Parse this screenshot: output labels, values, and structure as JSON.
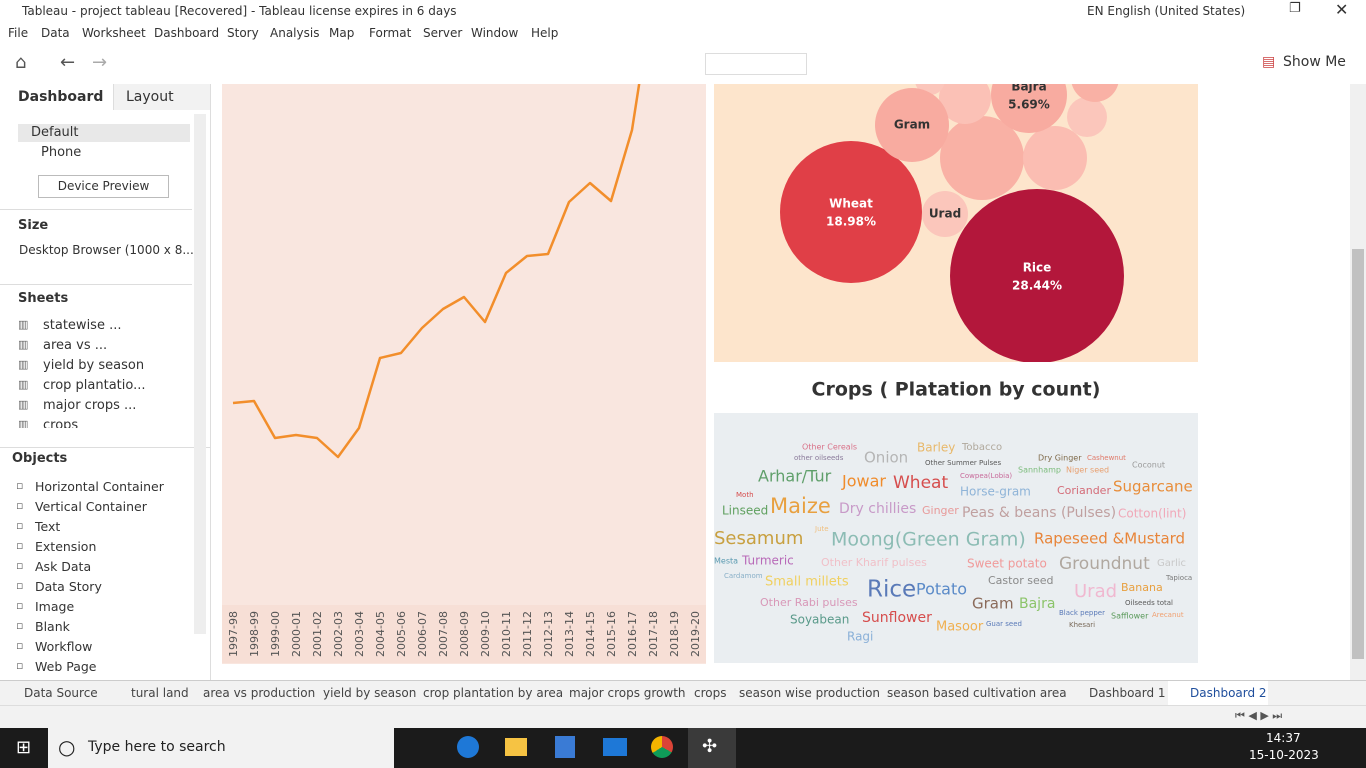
{
  "window": {
    "title": "Tableau - project tableau [Recovered] - Tableau license expires in 6 days",
    "language": "EN English (United States)"
  },
  "menu": [
    "File",
    "Data",
    "Worksheet",
    "Dashboard",
    "Story",
    "Analysis",
    "Map",
    "Format",
    "Server",
    "Window",
    "Help"
  ],
  "toolbar": {
    "show_me": "Show Me"
  },
  "sidebar": {
    "tabs": [
      "Dashboard",
      "Layout"
    ],
    "devices": [
      "Default",
      "Phone"
    ],
    "device_preview": "Device Preview",
    "size_heading": "Size",
    "size_value": "Desktop Browser (1000 x 8...",
    "sheets_heading": "Sheets",
    "sheets": [
      "statewise ...",
      "area vs ...",
      "yield by season",
      "crop plantatio...",
      "major crops ...",
      "crops"
    ],
    "objects_heading": "Objects",
    "objects": [
      "Horizontal Container",
      "Vertical Container",
      "Text",
      "Extension",
      "Ask Data",
      "Data Story",
      "Image",
      "Blank",
      "Workflow",
      "Web Page"
    ]
  },
  "line_chart": {
    "type": "line",
    "color": "#f28e2b",
    "x": [
      "1997-98",
      "1998-99",
      "1999-00",
      "2000-01",
      "2001-02",
      "2002-03",
      "2003-04",
      "2004-05",
      "2005-06",
      "2006-07",
      "2007-08",
      "2008-09",
      "2009-10",
      "2010-11",
      "2011-12",
      "2012-13",
      "2013-14",
      "2014-15",
      "2015-16",
      "2016-17",
      "2017-18",
      "2018-19",
      "2019-20"
    ],
    "values": [
      57,
      59,
      22,
      25,
      22,
      3,
      32,
      102,
      107,
      132,
      151,
      163,
      138,
      187,
      204,
      206,
      258,
      277,
      259,
      330,
      465,
      null,
      null
    ],
    "ylim": [
      0,
      375
    ]
  },
  "bubble_chart": {
    "type": "bubble",
    "bubbles": [
      {
        "name": "Rice",
        "value": 28.44,
        "value_label": "28.44%",
        "color": "#b3173b"
      },
      {
        "name": "Wheat",
        "value": 18.98,
        "value_label": "18.98%",
        "color": "#e03f47"
      },
      {
        "name": "Bajra",
        "value": 5.69,
        "value_label": "5.69%",
        "color": "#f8aba0"
      },
      {
        "name": "Gram",
        "color": "#f8aba0"
      },
      {
        "name": "Urad",
        "color": "#fbc6bb"
      }
    ]
  },
  "word_cloud": {
    "title": "Crops ( Platation by count)",
    "words": [
      {
        "text": "Other Cereals",
        "color": "#d9738a"
      },
      {
        "text": "Barley",
        "color": "#e8b86a"
      },
      {
        "text": "Tobacco",
        "color": "#b0a89c"
      },
      {
        "text": "other oilseeds",
        "color": "#8a7a9a"
      },
      {
        "text": "Onion",
        "color": "#b5b5b5"
      },
      {
        "text": "Dry Ginger",
        "color": "#7f6a4a"
      },
      {
        "text": "Cashewnut",
        "color": "#e07a6a"
      },
      {
        "text": "Other Summer Pulses",
        "color": "#5a5a5a"
      },
      {
        "text": "Coconut",
        "color": "#9a9a9a"
      },
      {
        "text": "Sannhamp",
        "color": "#7cbc7c"
      },
      {
        "text": "Niger seed",
        "color": "#e8a070"
      },
      {
        "text": "Cowpea(Lobia)",
        "color": "#c86a9a"
      },
      {
        "text": "Arhar/Tur",
        "color": "#5f9f6a"
      },
      {
        "text": "Jowar",
        "color": "#f08c2c"
      },
      {
        "text": "Wheat",
        "color": "#d64d4d"
      },
      {
        "text": "Horse-gram",
        "color": "#8fb4d8"
      },
      {
        "text": "Coriander",
        "color": "#d46c78"
      },
      {
        "text": "Sugarcane",
        "color": "#e88d3a"
      },
      {
        "text": "Moth",
        "color": "#d64d4d"
      },
      {
        "text": "Linseed",
        "color": "#5fa05f"
      },
      {
        "text": "Maize",
        "color": "#e8a040"
      },
      {
        "text": "Jute",
        "color": "#f0c080"
      },
      {
        "text": "Dry chillies",
        "color": "#c89ac8"
      },
      {
        "text": "Ginger",
        "color": "#e89a9a"
      },
      {
        "text": "Peas & beans (Pulses)",
        "color": "#c0a0a0"
      },
      {
        "text": "Cotton(lint)",
        "color": "#f0a8b8"
      },
      {
        "text": "Sesamum",
        "color": "#c8a040"
      },
      {
        "text": "Moong(Green Gram)",
        "color": "#8cbcb4"
      },
      {
        "text": "Rapeseed &Mustard",
        "color": "#e8853a"
      },
      {
        "text": "Mesta",
        "color": "#5a9ab0"
      },
      {
        "text": "Turmeric",
        "color": "#b86ab8"
      },
      {
        "text": "Other Kharif pulses",
        "color": "#f0c0c8"
      },
      {
        "text": "Sweet potato",
        "color": "#f09a9a"
      },
      {
        "text": "Groundnut",
        "color": "#b0a8a0"
      },
      {
        "text": "Garlic",
        "color": "#c8c8c8"
      },
      {
        "text": "Cardamom",
        "color": "#8ab0c8"
      },
      {
        "text": "Small millets",
        "color": "#f0d060"
      },
      {
        "text": "Castor seed",
        "color": "#8a8a8a"
      },
      {
        "text": "Tapioca",
        "color": "#7a7a7a"
      },
      {
        "text": "Rice",
        "color": "#5a7ab8"
      },
      {
        "text": "Potato",
        "color": "#5a8ac8"
      },
      {
        "text": "Urad",
        "color": "#f0b8d0"
      },
      {
        "text": "Banana",
        "color": "#e8a040"
      },
      {
        "text": "Other Rabi pulses",
        "color": "#d898b8"
      },
      {
        "text": "Gram",
        "color": "#8a6a5a"
      },
      {
        "text": "Bajra",
        "color": "#8cc46a"
      },
      {
        "text": "Oilseeds total",
        "color": "#5a5a5a"
      },
      {
        "text": "Sunflower",
        "color": "#d64d4d"
      },
      {
        "text": "Black pepper",
        "color": "#5a7ab8"
      },
      {
        "text": "Arecanut",
        "color": "#f0a070"
      },
      {
        "text": "Safflower",
        "color": "#5a9a5a"
      },
      {
        "text": "Soyabean",
        "color": "#5a9a8a"
      },
      {
        "text": "Masoor",
        "color": "#f0b050"
      },
      {
        "text": "Guar seed",
        "color": "#5a7ab8"
      },
      {
        "text": "Khesari",
        "color": "#7a6a5a"
      },
      {
        "text": "Ragi",
        "color": "#8ab0d8"
      }
    ]
  },
  "tabs": [
    "Data Source",
    "tural land",
    "area vs production",
    "yield by season",
    "crop plantation by area",
    "major crops growth",
    "crops",
    "season wise production",
    "season based cultivation area",
    "Dashboard 1",
    "Dashboard 2"
  ],
  "taskbar": {
    "search": "Type here to search",
    "time": "14:37",
    "date": "15-10-2023"
  }
}
